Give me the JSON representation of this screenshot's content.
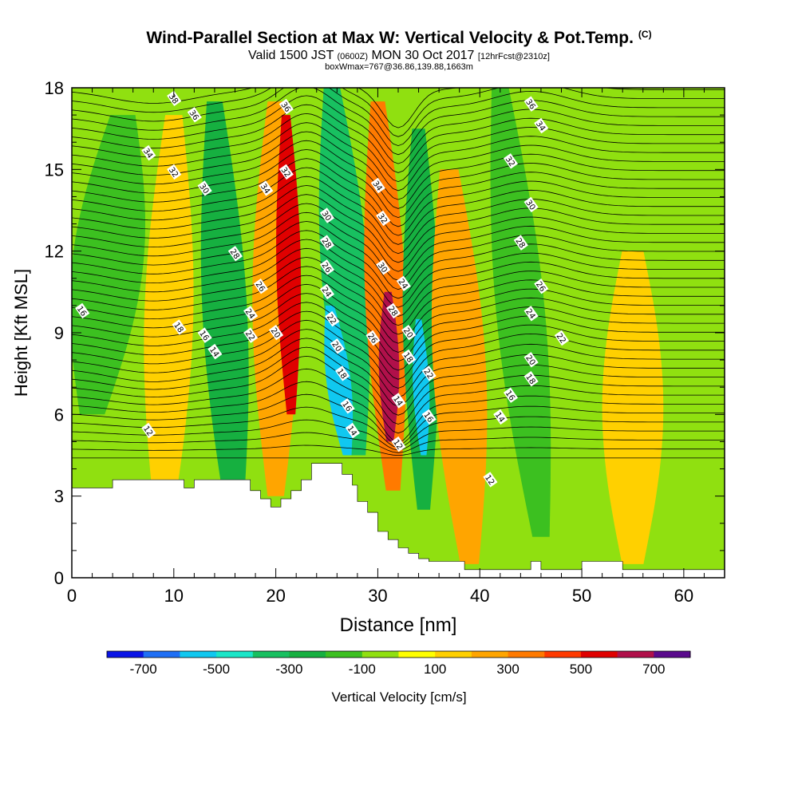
{
  "header": {
    "title": "Wind-Parallel Section at Max W: Vertical Velocity & Pot.Temp.",
    "copyright": "(C)",
    "valid_prefix": "Valid 1500 JST",
    "valid_utc": "(0600Z)",
    "valid_date": "MON 30 Oct 2017",
    "forecast": "[12hrFcst@2310z]",
    "subtitle": "boxWmax=767@36.86,139.88,1663m"
  },
  "chart_data": {
    "type": "contour_cross_section",
    "xlabel": "Distance [nm]",
    "ylabel": "Height [Kft MSL]",
    "xlim": [
      0,
      64
    ],
    "ylim": [
      0,
      18
    ],
    "xticks": [
      0,
      10,
      20,
      30,
      40,
      50,
      60
    ],
    "xtick_labels": [
      "0",
      "10",
      "20",
      "30",
      "40",
      "50",
      "60"
    ],
    "yticks": [
      0,
      3,
      6,
      9,
      12,
      15,
      18
    ],
    "ytick_labels": [
      "0",
      "3",
      "6",
      "9",
      "12",
      "15",
      "18"
    ],
    "field": "Vertical Velocity",
    "contours": "Potential Temperature (C)",
    "max_w": "767",
    "colorbar": {
      "label": "Vertical Velocity [cm/s]",
      "bounds": [
        -800,
        -700,
        -600,
        -500,
        -400,
        -300,
        -200,
        -100,
        0,
        100,
        200,
        300,
        400,
        500,
        600,
        700,
        800
      ],
      "colors": [
        "#0a14e6",
        "#1f6ff5",
        "#10c8f0",
        "#1ae6c8",
        "#18c060",
        "#16b040",
        "#3cc020",
        "#90e010",
        "#ffff00",
        "#ffd000",
        "#ffa500",
        "#ff7a00",
        "#ff3a00",
        "#e00000",
        "#b0104a",
        "#5a0a8c"
      ],
      "tick_values": [
        -700,
        -500,
        -300,
        -100,
        100,
        300,
        500,
        700
      ],
      "tick_labels": [
        "-700",
        "-500",
        "-300",
        "-100",
        "100",
        "300",
        "500",
        "700"
      ]
    },
    "w_bands": [
      {
        "x_bottom": 2,
        "x_top": 5,
        "y_bottom": 6,
        "y_top": 17,
        "w_half": 3.5,
        "value": -180
      },
      {
        "x_bottom": 9,
        "x_top": 10,
        "y_bottom": 2,
        "y_top": 17,
        "w_half": 2.4,
        "value": 180
      },
      {
        "x_bottom": 16,
        "x_top": 14,
        "y_bottom": 2,
        "y_top": 17.5,
        "w_half": 2.2,
        "value": -220
      },
      {
        "x_bottom": 20,
        "x_top": 20,
        "y_bottom": 3,
        "y_top": 17.5,
        "w_half": 2.3,
        "value": 260
      },
      {
        "x_bottom": 21.5,
        "x_top": 21,
        "y_bottom": 6,
        "y_top": 17,
        "w_half": 1.2,
        "value": 520
      },
      {
        "x_bottom": 28,
        "x_top": 25.5,
        "y_bottom": 4.5,
        "y_top": 18,
        "w_half": 2.3,
        "value": -350
      },
      {
        "x_bottom": 27,
        "x_top": 25.3,
        "y_bottom": 4.5,
        "y_top": 10,
        "w_half": 1.2,
        "value": -560
      },
      {
        "x_bottom": 31.5,
        "x_top": 30,
        "y_bottom": 3.2,
        "y_top": 17.5,
        "w_half": 2.0,
        "value": 320
      },
      {
        "x_bottom": 31.2,
        "x_top": 31,
        "y_bottom": 5,
        "y_top": 10.5,
        "w_half": 1.0,
        "value": 640
      },
      {
        "x_bottom": 34.5,
        "x_top": 34,
        "y_bottom": 2.5,
        "y_top": 16.5,
        "w_half": 1.8,
        "value": -260
      },
      {
        "x_bottom": 34.5,
        "x_top": 34,
        "y_bottom": 4.5,
        "y_top": 9.5,
        "w_half": 0.8,
        "value": -580
      },
      {
        "x_bottom": 39,
        "x_top": 37,
        "y_bottom": 0.5,
        "y_top": 15,
        "w_half": 2.6,
        "value": 220
      },
      {
        "x_bottom": 46,
        "x_top": 42,
        "y_bottom": 1.5,
        "y_top": 18,
        "w_half": 2.4,
        "value": -150
      },
      {
        "x_bottom": 55,
        "x_top": 55,
        "y_bottom": 0.5,
        "y_top": 12,
        "w_half": 3.0,
        "value": 150
      }
    ],
    "theta_labels": [
      {
        "x": 10,
        "y": 17.6,
        "text": "38"
      },
      {
        "x": 12,
        "y": 17.0,
        "text": "36"
      },
      {
        "x": 7.5,
        "y": 15.6,
        "text": "34"
      },
      {
        "x": 10,
        "y": 14.9,
        "text": "32"
      },
      {
        "x": 13,
        "y": 14.3,
        "text": "30"
      },
      {
        "x": 16,
        "y": 11.9,
        "text": "28"
      },
      {
        "x": 18.5,
        "y": 10.7,
        "text": "26"
      },
      {
        "x": 17.5,
        "y": 9.7,
        "text": "24"
      },
      {
        "x": 17.5,
        "y": 8.9,
        "text": "22"
      },
      {
        "x": 20,
        "y": 9.0,
        "text": "20"
      },
      {
        "x": 10.5,
        "y": 9.2,
        "text": "18"
      },
      {
        "x": 13,
        "y": 8.9,
        "text": "16"
      },
      {
        "x": 14,
        "y": 8.3,
        "text": "14"
      },
      {
        "x": 1,
        "y": 9.8,
        "text": "16"
      },
      {
        "x": 7.5,
        "y": 5.4,
        "text": "12"
      },
      {
        "x": 21,
        "y": 17.3,
        "text": "36"
      },
      {
        "x": 21,
        "y": 14.9,
        "text": "32"
      },
      {
        "x": 19,
        "y": 14.3,
        "text": "34"
      },
      {
        "x": 25,
        "y": 13.3,
        "text": "30"
      },
      {
        "x": 25,
        "y": 12.3,
        "text": "28"
      },
      {
        "x": 25,
        "y": 11.4,
        "text": "26"
      },
      {
        "x": 25,
        "y": 10.5,
        "text": "24"
      },
      {
        "x": 25.5,
        "y": 9.5,
        "text": "22"
      },
      {
        "x": 26,
        "y": 8.5,
        "text": "20"
      },
      {
        "x": 26.5,
        "y": 7.5,
        "text": "18"
      },
      {
        "x": 27,
        "y": 6.3,
        "text": "16"
      },
      {
        "x": 27.5,
        "y": 5.4,
        "text": "14"
      },
      {
        "x": 30,
        "y": 14.4,
        "text": "34"
      },
      {
        "x": 30.5,
        "y": 13.2,
        "text": "32"
      },
      {
        "x": 30.5,
        "y": 11.4,
        "text": "30"
      },
      {
        "x": 31.5,
        "y": 9.8,
        "text": "28"
      },
      {
        "x": 29.5,
        "y": 8.8,
        "text": "26"
      },
      {
        "x": 32.5,
        "y": 10.8,
        "text": "24"
      },
      {
        "x": 33,
        "y": 9.0,
        "text": "20"
      },
      {
        "x": 33,
        "y": 8.1,
        "text": "18"
      },
      {
        "x": 35,
        "y": 7.5,
        "text": "22"
      },
      {
        "x": 32,
        "y": 6.5,
        "text": "14"
      },
      {
        "x": 35,
        "y": 5.9,
        "text": "16"
      },
      {
        "x": 32,
        "y": 4.9,
        "text": "12"
      },
      {
        "x": 45,
        "y": 17.4,
        "text": "36"
      },
      {
        "x": 46,
        "y": 16.6,
        "text": "34"
      },
      {
        "x": 43,
        "y": 15.3,
        "text": "32"
      },
      {
        "x": 45,
        "y": 13.7,
        "text": "30"
      },
      {
        "x": 44,
        "y": 12.3,
        "text": "28"
      },
      {
        "x": 46,
        "y": 10.7,
        "text": "26"
      },
      {
        "x": 45,
        "y": 9.7,
        "text": "24"
      },
      {
        "x": 48,
        "y": 8.8,
        "text": "22"
      },
      {
        "x": 45,
        "y": 8.0,
        "text": "20"
      },
      {
        "x": 45,
        "y": 7.3,
        "text": "18"
      },
      {
        "x": 43,
        "y": 6.7,
        "text": "16"
      },
      {
        "x": 42,
        "y": 5.9,
        "text": "14"
      },
      {
        "x": 41,
        "y": 3.6,
        "text": "12"
      }
    ]
  }
}
